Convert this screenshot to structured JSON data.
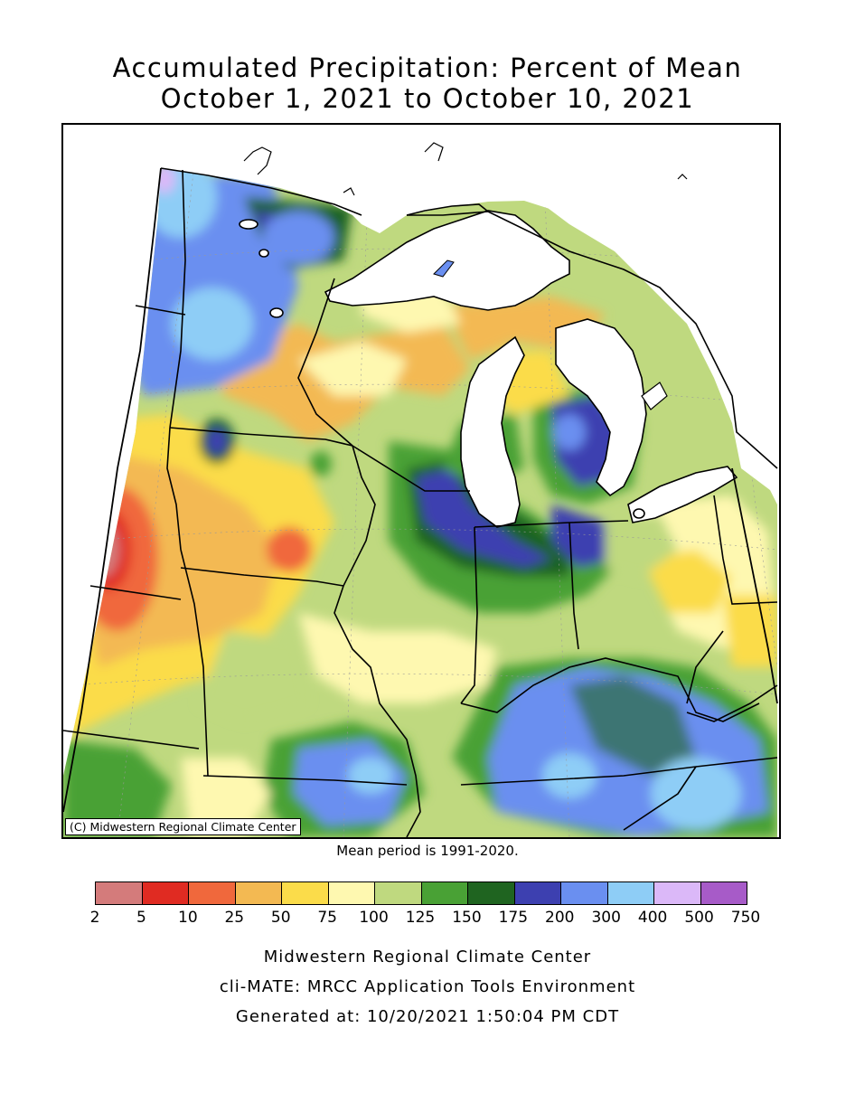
{
  "title": {
    "line1": "Accumulated Precipitation: Percent of Mean",
    "line2": "October 1, 2021 to October 10, 2021"
  },
  "map": {
    "copyright": "(C) Midwestern Regional Climate Center",
    "colors": {
      "c2": "#d47b7b",
      "c5": "#e02b22",
      "c10": "#f0683c",
      "c25": "#f3b952",
      "c50": "#fbdc4a",
      "c75": "#fef8b0",
      "c100": "#bfd97f",
      "c125": "#49a135",
      "c150": "#1f6420",
      "c175": "#3d40b0",
      "c200": "#6a8ff0",
      "c300": "#8ecdf6",
      "c400": "#dbb8f8",
      "c500": "#a75bc8",
      "water": "#ffffff"
    }
  },
  "mean_period": "Mean period is 1991-2020.",
  "legend": {
    "colors": [
      "#d47b7b",
      "#e02b22",
      "#f0683c",
      "#f3b952",
      "#fbdc4a",
      "#fef8b0",
      "#bfd97f",
      "#49a135",
      "#1f6420",
      "#3d40b0",
      "#6a8ff0",
      "#8ecdf6",
      "#dbb8f8",
      "#a75bc8"
    ],
    "ticks": [
      "2",
      "5",
      "10",
      "25",
      "50",
      "75",
      "100",
      "125",
      "150",
      "175",
      "200",
      "300",
      "400",
      "500",
      "750"
    ]
  },
  "footer": {
    "line1": "Midwestern Regional Climate Center",
    "line2": "cli-MATE: MRCC Application Tools Environment",
    "line3": "Generated at: 10/20/2021 1:50:04 PM CDT"
  }
}
